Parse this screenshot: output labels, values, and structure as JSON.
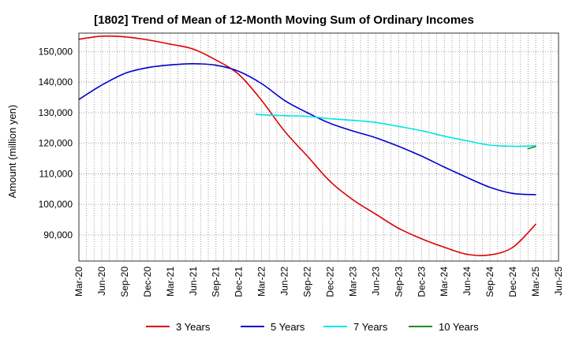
{
  "chart_data": {
    "type": "line",
    "title": "[1802]  Trend of Mean of 12-Month Moving Sum of Ordinary Incomes",
    "xlabel": "",
    "ylabel": "Amount (million yen)",
    "ylim": [
      81500,
      156000
    ],
    "yticks": [
      90000,
      100000,
      110000,
      120000,
      130000,
      140000,
      150000
    ],
    "ytick_labels": [
      "90,000",
      "100,000",
      "110,000",
      "120,000",
      "130,000",
      "140,000",
      "150,000"
    ],
    "xticks": [
      "Mar-20",
      "Jun-20",
      "Sep-20",
      "Dec-20",
      "Mar-21",
      "Jun-21",
      "Sep-21",
      "Dec-21",
      "Mar-22",
      "Jun-22",
      "Sep-22",
      "Dec-22",
      "Mar-23",
      "Jun-23",
      "Sep-23",
      "Dec-23",
      "Mar-24",
      "Jun-24",
      "Sep-24",
      "Dec-24",
      "Mar-25",
      "Jun-25"
    ],
    "grid": true,
    "legend_position": "bottom",
    "series": [
      {
        "name": "3 Years",
        "color": "#e00000",
        "points": [
          [
            0,
            154000
          ],
          [
            1,
            155000
          ],
          [
            2,
            154800
          ],
          [
            3,
            153800
          ],
          [
            4,
            152400
          ],
          [
            5,
            150800
          ],
          [
            6,
            147200
          ],
          [
            7,
            142500
          ],
          [
            8,
            134000
          ],
          [
            9,
            124000
          ],
          [
            10,
            115800
          ],
          [
            11,
            107500
          ],
          [
            12,
            101500
          ],
          [
            13,
            96800
          ],
          [
            14,
            92200
          ],
          [
            15,
            88800
          ],
          [
            16,
            86000
          ],
          [
            17,
            83700
          ],
          [
            18,
            83500
          ],
          [
            19,
            86000
          ],
          [
            20,
            93500
          ]
        ]
      },
      {
        "name": "5 Years",
        "color": "#0000cc",
        "points": [
          [
            0,
            134300
          ],
          [
            1,
            139000
          ],
          [
            2,
            142800
          ],
          [
            3,
            144700
          ],
          [
            4,
            145600
          ],
          [
            5,
            146000
          ],
          [
            6,
            145500
          ],
          [
            7,
            143500
          ],
          [
            8,
            139500
          ],
          [
            9,
            134000
          ],
          [
            10,
            130000
          ],
          [
            11,
            126500
          ],
          [
            12,
            124000
          ],
          [
            13,
            121800
          ],
          [
            14,
            119000
          ],
          [
            15,
            115800
          ],
          [
            16,
            112200
          ],
          [
            17,
            108800
          ],
          [
            18,
            105600
          ],
          [
            19,
            103600
          ],
          [
            20,
            103200
          ]
        ]
      },
      {
        "name": "7 Years",
        "color": "#00e5e5",
        "points": [
          [
            7.75,
            129500
          ],
          [
            8,
            129300
          ],
          [
            9,
            129000
          ],
          [
            10,
            128800
          ],
          [
            11,
            128000
          ],
          [
            12,
            127500
          ],
          [
            13,
            126800
          ],
          [
            14,
            125500
          ],
          [
            15,
            124100
          ],
          [
            16,
            122300
          ],
          [
            17,
            120800
          ],
          [
            18,
            119400
          ],
          [
            19,
            119000
          ],
          [
            20,
            119200
          ]
        ]
      },
      {
        "name": "10 Years",
        "color": "#228b22",
        "points": [
          [
            19.66,
            118200
          ],
          [
            20,
            118900
          ]
        ]
      }
    ]
  }
}
